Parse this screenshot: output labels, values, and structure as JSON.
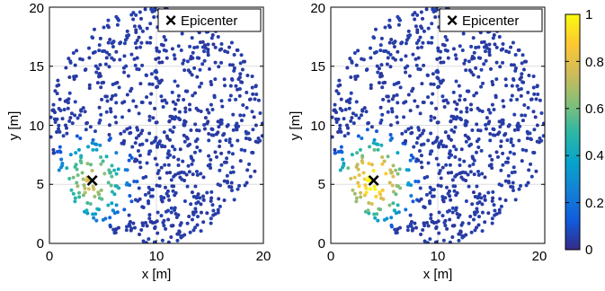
{
  "chart_data": [
    {
      "type": "scatter",
      "title": "",
      "xlabel": "x [m]",
      "ylabel": "y [m]",
      "xlim": [
        0,
        20
      ],
      "ylim": [
        0,
        20
      ],
      "xticks": [
        "0",
        "10",
        "20"
      ],
      "yticks": [
        "0",
        "5",
        "10",
        "15",
        "20"
      ],
      "grid": true,
      "legend": {
        "entries": [
          "Epicenter"
        ],
        "placement": "top-right"
      },
      "epicenter": {
        "x": 4,
        "y": 5.3
      },
      "point_distribution": {
        "center": [
          10,
          10
        ],
        "radius": 10,
        "count": 900
      },
      "color_field": {
        "peak_value": 0.75,
        "decay_radius": 4.2,
        "outer_value": 0.03
      },
      "colormap": "parula"
    },
    {
      "type": "scatter",
      "title": "",
      "xlabel": "x [m]",
      "ylabel": "y [m]",
      "xlim": [
        0,
        20
      ],
      "ylim": [
        0,
        20
      ],
      "xticks": [
        "0",
        "10",
        "20"
      ],
      "yticks": [
        "0",
        "5",
        "10",
        "15",
        "20"
      ],
      "grid": true,
      "legend": {
        "entries": [
          "Epicenter"
        ],
        "placement": "top-right"
      },
      "epicenter": {
        "x": 4,
        "y": 5.3
      },
      "point_distribution": {
        "center": [
          10,
          10
        ],
        "radius": 10,
        "count": 900
      },
      "color_field": {
        "peak_value": 1.0,
        "decay_radius": 4.4,
        "outer_value": 0.03
      },
      "colormap": "parula"
    }
  ],
  "colorbar": {
    "range": [
      0,
      1
    ],
    "ticks": [
      "0",
      "0.2",
      "0.4",
      "0.6",
      "0.8",
      "1"
    ],
    "colormap": "parula",
    "colors": [
      "#352a87",
      "#0f5cdd",
      "#1481d6",
      "#06a4ca",
      "#2eb7a4",
      "#87bf77",
      "#d1bb59",
      "#fec832",
      "#f9fb0e"
    ]
  },
  "marker": {
    "symbol": "×",
    "color": "#000000"
  },
  "grid_color": "#dddddd"
}
